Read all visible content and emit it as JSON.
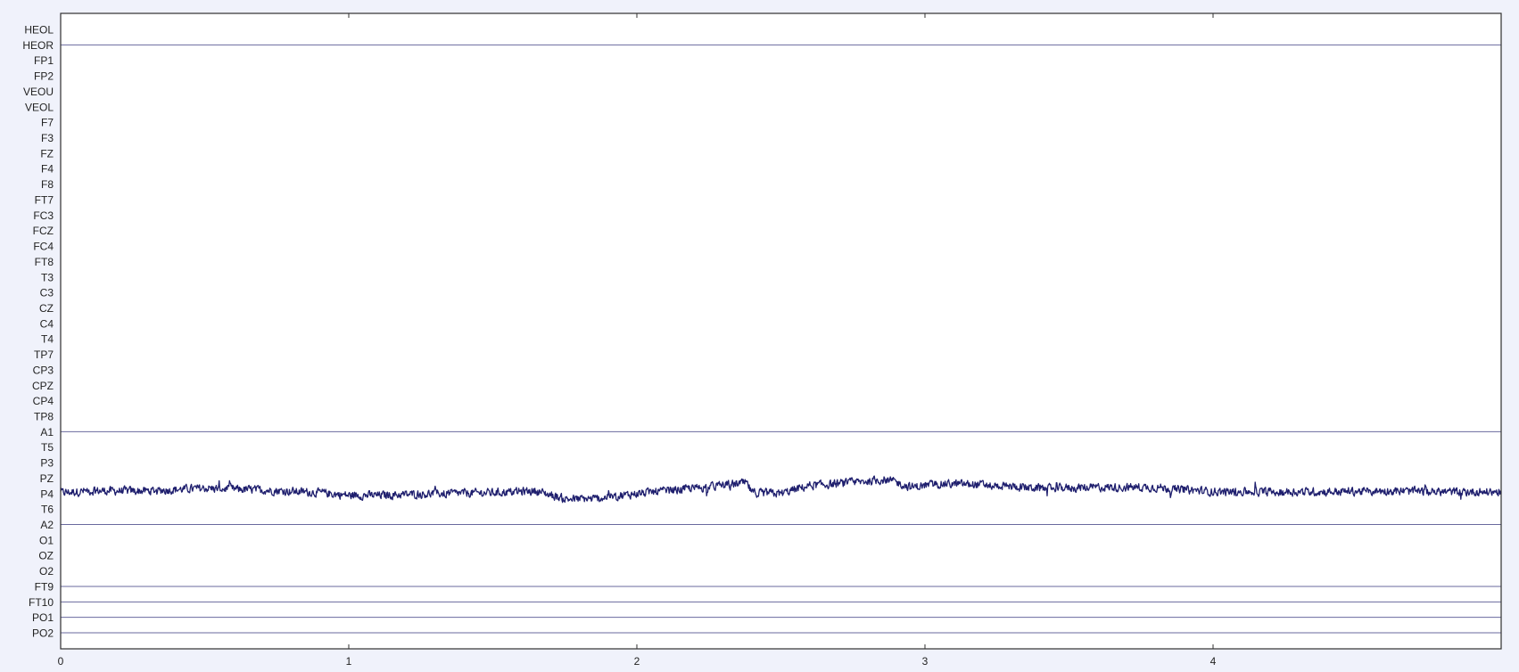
{
  "chart_data": {
    "type": "line",
    "title": "",
    "xlabel": "",
    "ylabel": "",
    "xlim": [
      0,
      5
    ],
    "x_ticks": [
      "0",
      "1",
      "2",
      "3",
      "4"
    ],
    "x_tick_values": [
      0,
      1,
      2,
      3,
      4
    ],
    "grid": false,
    "channels": [
      "HEOL",
      "HEOR",
      "FP1",
      "FP2",
      "VEOU",
      "VEOL",
      "F7",
      "F3",
      "FZ",
      "F4",
      "F8",
      "FT7",
      "FC3",
      "FCZ",
      "FC4",
      "FT8",
      "T3",
      "C3",
      "CZ",
      "C4",
      "T4",
      "TP7",
      "CP3",
      "CPZ",
      "CP4",
      "TP8",
      "A1",
      "T5",
      "P3",
      "PZ",
      "P4",
      "T6",
      "A2",
      "O1",
      "OZ",
      "O2",
      "FT9",
      "FT10",
      "PO1",
      "PO2"
    ],
    "flat_channel_lines": [
      "HEOR",
      "A1",
      "A2",
      "FT9",
      "FT10",
      "PO1",
      "PO2"
    ],
    "signal_channel": "P4",
    "signal_trend": {
      "x": [
        0,
        0.1,
        0.3,
        0.5,
        0.7,
        0.9,
        1.0,
        1.1,
        1.3,
        1.5,
        1.65,
        1.75,
        1.85,
        2.0,
        2.2,
        2.38,
        2.4,
        2.5,
        2.6,
        2.7,
        2.87,
        2.95,
        3.05,
        3.2,
        3.4,
        3.6,
        3.8,
        4.0,
        4.2,
        4.4,
        4.6,
        4.8,
        5.0
      ],
      "y": [
        0.0,
        0.1,
        0.1,
        0.25,
        0.15,
        0.0,
        -0.15,
        -0.15,
        -0.05,
        0.0,
        0.1,
        -0.35,
        -0.35,
        -0.05,
        0.25,
        0.55,
        0.0,
        -0.05,
        0.4,
        0.5,
        0.75,
        0.3,
        0.5,
        0.45,
        0.25,
        0.3,
        0.3,
        0.05,
        0.05,
        0.05,
        0.1,
        0.05,
        0.05
      ]
    },
    "colors": {
      "signal": "#1f1f6e",
      "channel_line": "#6a6a9e",
      "frame": "#303030",
      "background": "#f0f2fb",
      "plot_area": "#ffffff"
    }
  }
}
